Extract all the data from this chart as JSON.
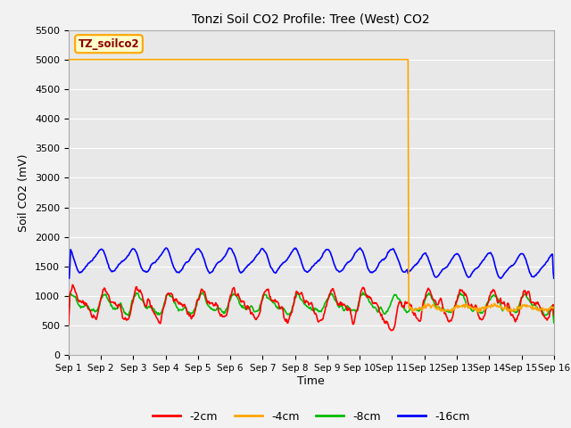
{
  "title": "Tonzi Soil CO2 Profile: Tree (West) CO2",
  "ylabel": "Soil CO2 (mV)",
  "xlabel": "Time",
  "watermark": "TZ_soilco2",
  "ylim": [
    0,
    5500
  ],
  "yticks": [
    0,
    500,
    1000,
    1500,
    2000,
    2500,
    3000,
    3500,
    4000,
    4500,
    5000,
    5500
  ],
  "x_labels": [
    "Sep 1",
    "Sep 2",
    "Sep 3",
    "Sep 4",
    "Sep 5",
    "Sep 6",
    "Sep 7",
    "Sep 8",
    "Sep 9",
    "Sep 10",
    "Sep 11",
    "Sep 12",
    "Sep 13",
    "Sep 14",
    "Sep 15",
    "Sep 16"
  ],
  "colors": {
    "neg2cm": "#FF0000",
    "neg4cm": "#FFA500",
    "neg8cm": "#00BB00",
    "neg16cm": "#0000FF"
  },
  "plot_bg": "#E8E8E8",
  "fig_bg": "#F2F2F2",
  "grid_color": "#FFFFFF",
  "n_points": 720,
  "drop_day": 10.5
}
